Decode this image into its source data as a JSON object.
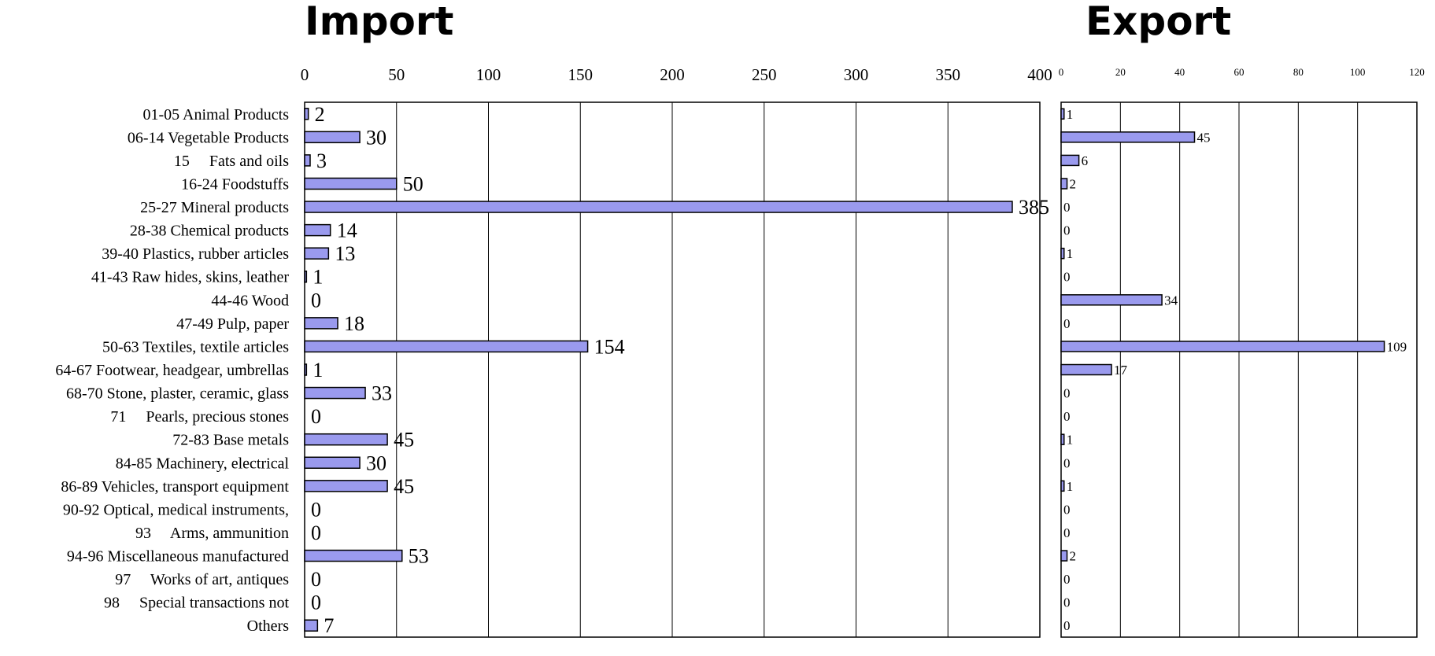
{
  "chart_data": [
    {
      "type": "bar",
      "orientation": "horizontal",
      "title": "Import",
      "xlim": [
        0,
        400
      ],
      "xticks": [
        0,
        50,
        100,
        150,
        200,
        250,
        300,
        350,
        400
      ],
      "grid": true,
      "categories": [
        "01-05 Animal Products",
        "06-14 Vegetable Products",
        "15     Fats and oils",
        "16-24 Foodstuffs",
        "25-27 Mineral products",
        "28-38 Chemical products",
        "39-40 Plastics, rubber articles",
        "41-43 Raw hides, skins, leather",
        "44-46 Wood",
        "47-49 Pulp, paper",
        "50-63 Textiles, textile articles",
        "64-67 Footwear, headgear, umbrellas",
        "68-70 Stone, plaster, ceramic, glass",
        "71     Pearls, precious stones",
        "72-83 Base metals",
        "84-85 Machinery, electrical",
        "86-89 Vehicles, transport equipment",
        "90-92 Optical, medical instruments,",
        "93     Arms, ammunition",
        "94-96 Miscellaneous manufactured",
        "97     Works of art, antiques",
        "98     Special transactions not",
        "Others"
      ],
      "values": [
        2,
        30,
        3,
        50,
        385,
        14,
        13,
        1,
        0,
        18,
        154,
        1,
        33,
        0,
        45,
        30,
        45,
        0,
        0,
        53,
        0,
        0,
        7
      ]
    },
    {
      "type": "bar",
      "orientation": "horizontal",
      "title": "Export",
      "xlim": [
        0,
        120
      ],
      "xticks": [
        0,
        20,
        40,
        60,
        80,
        100,
        120
      ],
      "grid": true,
      "values": [
        1,
        45,
        6,
        2,
        0,
        0,
        1,
        0,
        34,
        0,
        109,
        17,
        0,
        0,
        1,
        0,
        1,
        0,
        0,
        2,
        0,
        0,
        0
      ]
    }
  ]
}
